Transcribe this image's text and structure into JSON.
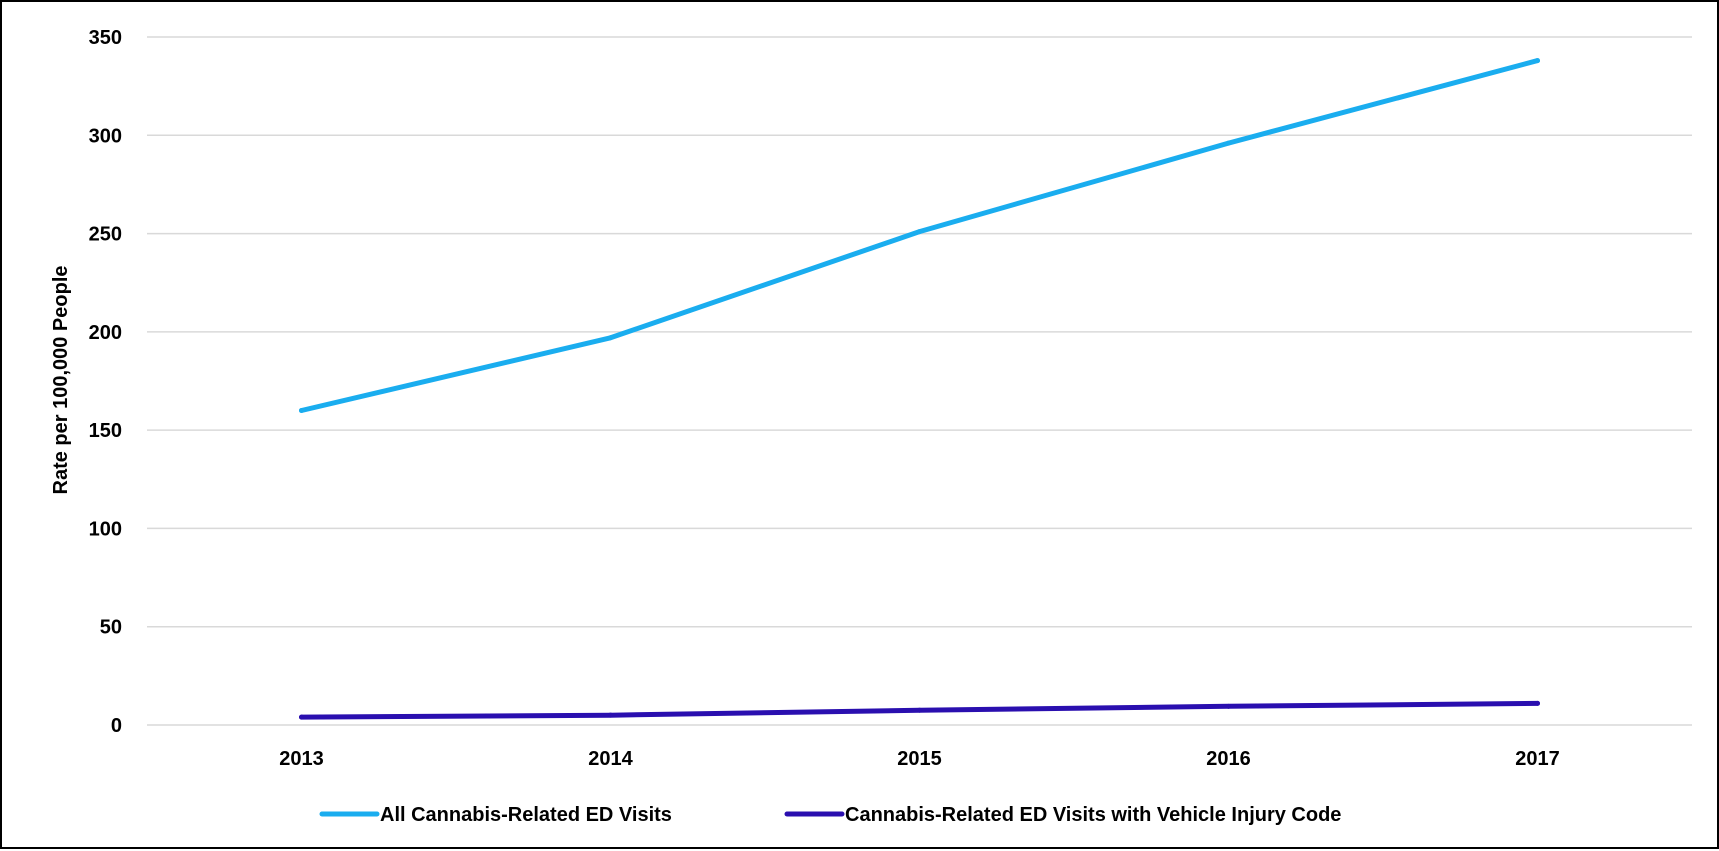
{
  "chart_data": {
    "type": "line",
    "title": "",
    "xlabel": "",
    "ylabel": "Rate per 100,000 People",
    "categories": [
      "2013",
      "2014",
      "2015",
      "2016",
      "2017"
    ],
    "ylim": [
      0,
      350
    ],
    "yticks": [
      0,
      50,
      100,
      150,
      200,
      250,
      300,
      350
    ],
    "grid": true,
    "legend_position": "bottom",
    "series": [
      {
        "name": "All Cannabis-Related ED Visits",
        "color": "#1AADEF",
        "values": [
          160,
          197,
          251,
          296,
          338
        ]
      },
      {
        "name": "Cannabis-Related ED Visits with Vehicle Injury Code",
        "color": "#2A0FAF",
        "values": [
          4,
          5,
          7.5,
          9.5,
          11
        ]
      }
    ]
  }
}
